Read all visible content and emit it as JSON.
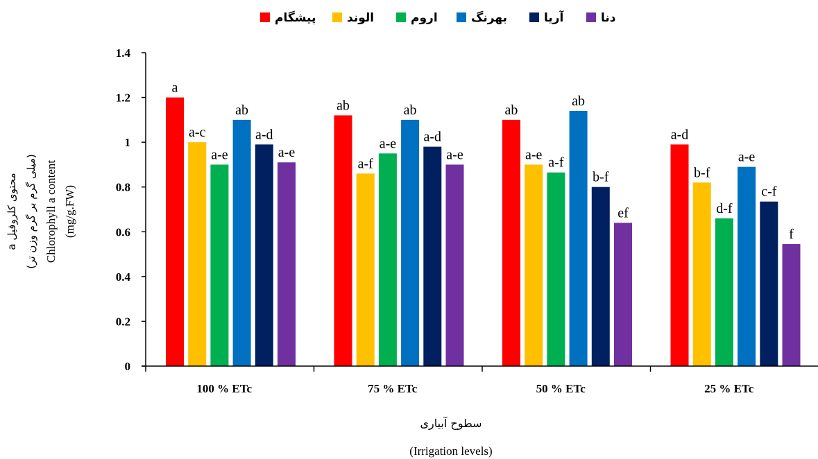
{
  "chart_data": {
    "type": "bar",
    "categories": [
      "100 % ETc",
      "75 % ETc",
      "50 % ETc",
      "25 % ETc"
    ],
    "series": [
      {
        "name": "پیشگام",
        "color": "#ff0000",
        "values": [
          1.2,
          1.12,
          1.1,
          0.99
        ],
        "labels": [
          "a",
          "ab",
          "ab",
          "a-d"
        ]
      },
      {
        "name": "الوند",
        "color": "#ffc000",
        "values": [
          1.0,
          0.86,
          0.9,
          0.82
        ],
        "labels": [
          "a-c",
          "a-f",
          "a-e",
          "b-f"
        ]
      },
      {
        "name": "اروم",
        "color": "#00b050",
        "values": [
          0.9,
          0.95,
          0.865,
          0.66
        ],
        "labels": [
          "a-e",
          "a-e",
          "a-f",
          "d-f"
        ]
      },
      {
        "name": "بهرنگ",
        "color": "#0070c0",
        "values": [
          1.1,
          1.1,
          1.14,
          0.89
        ],
        "labels": [
          "ab",
          "ab",
          "ab",
          "a-e"
        ]
      },
      {
        "name": "آریا",
        "color": "#002060",
        "values": [
          0.99,
          0.98,
          0.8,
          0.735
        ],
        "labels": [
          "a-d",
          "a-d",
          "b-f",
          "c-f"
        ]
      },
      {
        "name": "دنا",
        "color": "#7030a0",
        "values": [
          0.91,
          0.9,
          0.64,
          0.545
        ],
        "labels": [
          "a-e",
          "a-e",
          "ef",
          "f"
        ]
      }
    ],
    "yticks": [
      "0",
      "0.2",
      "0.4",
      "0.6",
      "0.8",
      "1",
      "1.2",
      "1.4"
    ],
    "ylim": [
      0,
      1.4
    ],
    "ylabel_lines": [
      "محتوی کلروفیل a",
      "(میلی گرم بر گرم وزن تر)",
      "Chlorophyll a content",
      "(mg/g.FW)"
    ],
    "xlabel_lines": [
      "سطوح آبیاری",
      "(Irrigation levels)"
    ],
    "legend_position": "top",
    "grid": false
  }
}
